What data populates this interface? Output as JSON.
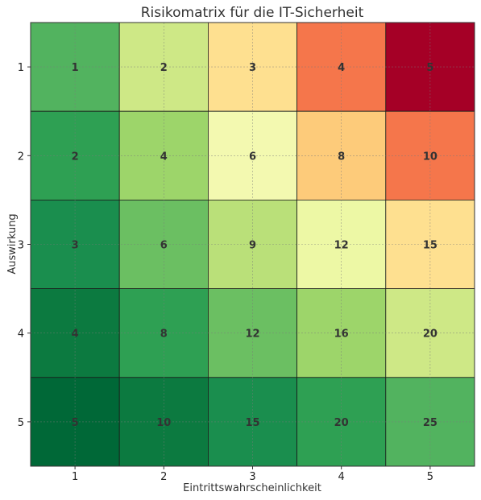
{
  "chart_data": {
    "type": "heatmap",
    "title": "Risikomatrix für die IT-Sicherheit",
    "xlabel": "Eintrittswahrscheinlichkeit",
    "ylabel": "Auswirkung",
    "x_categories": [
      1,
      2,
      3,
      4,
      5
    ],
    "y_categories": [
      1,
      2,
      3,
      4,
      5
    ],
    "x_tick_labels": [
      "1",
      "2",
      "3",
      "4",
      "5"
    ],
    "y_tick_labels": [
      "1",
      "2",
      "3",
      "4",
      "5"
    ],
    "values": [
      [
        1,
        2,
        3,
        4,
        5
      ],
      [
        2,
        4,
        6,
        8,
        10
      ],
      [
        3,
        6,
        9,
        12,
        15
      ],
      [
        4,
        8,
        12,
        16,
        20
      ],
      [
        5,
        10,
        15,
        20,
        25
      ]
    ],
    "cell_colors": [
      [
        "#52b35f",
        "#cee886",
        "#fee090",
        "#f5764b",
        "#a50026"
      ],
      [
        "#2ea053",
        "#9dd56a",
        "#f3f9b0",
        "#fdcb7a",
        "#f5764b"
      ],
      [
        "#1a8e4e",
        "#6bbf62",
        "#bae079",
        "#edf8a5",
        "#fee090"
      ],
      [
        "#0c7a40",
        "#2ea053",
        "#6bbf62",
        "#9dd56a",
        "#cee886"
      ],
      [
        "#006837",
        "#0c7a40",
        "#1a8e4e",
        "#2ea053",
        "#52b35f"
      ]
    ],
    "grid": true,
    "colormap": "RdYlGn_r"
  }
}
